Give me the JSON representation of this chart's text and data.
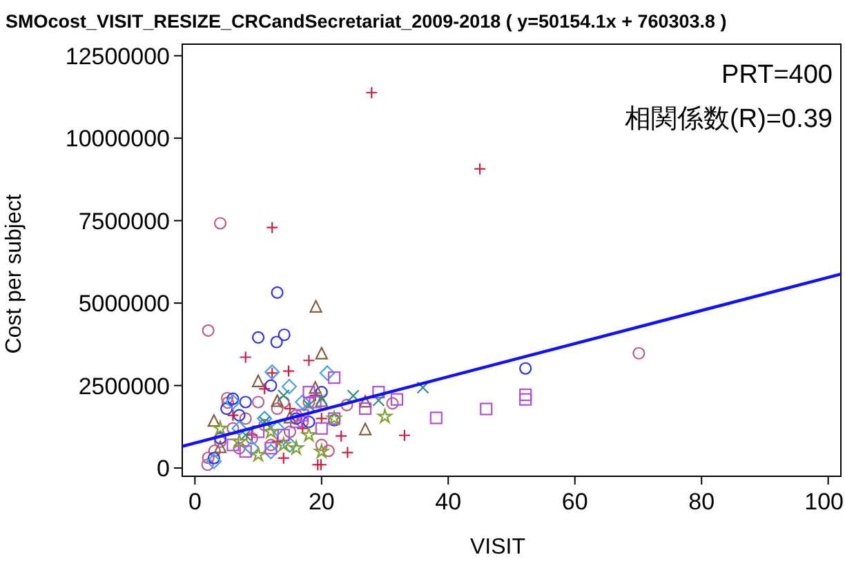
{
  "chart_data": {
    "type": "scatter",
    "title": "SMOcost_VISIT_RESIZE_CRCandSecretariat_2009-2018 ( y=50154.1x + 760303.8 )",
    "xlabel": "VISIT",
    "ylabel": "Cost per subject",
    "annotations": [
      "PRT=400",
      "相関係数(R)=0.39"
    ],
    "xlim": [
      -2,
      102
    ],
    "ylim": [
      -250000,
      12850000
    ],
    "xticks": [
      0,
      20,
      40,
      60,
      80,
      100
    ],
    "yticks": [
      0,
      2500000,
      5000000,
      7500000,
      10000000,
      12500000
    ],
    "grid": false,
    "series": [
      {
        "marker": "circle",
        "color": "#c06080",
        "x": [
          2.0,
          2.1,
          3.1,
          2.1,
          4.0,
          5.1,
          5.2,
          4,
          6,
          7,
          8,
          9,
          10,
          11,
          12,
          13,
          14,
          15,
          16,
          17,
          18,
          20,
          21.1,
          24.0,
          31.2,
          70.1
        ],
        "values": [
          100000,
          310000,
          520000,
          4170000,
          7420000,
          2120000,
          1980000,
          800000,
          1200000,
          600000,
          1500000,
          900000,
          2000000,
          1300000,
          700000,
          1800000,
          2000000,
          1100000,
          1600000,
          1400000,
          2000000,
          700000,
          520000,
          1910000,
          1960000,
          3480000
        ]
      },
      {
        "marker": "circle",
        "color": "#3030ff",
        "x": [
          13.0,
          10.0,
          14.1,
          12.9,
          5,
          6,
          7,
          8,
          4,
          3,
          12,
          16,
          18,
          20,
          22.0,
          52.2
        ],
        "values": [
          5320000,
          3960000,
          4040000,
          3820000,
          1800000,
          2100000,
          1600000,
          2000000,
          900000,
          300000,
          2500000,
          1500000,
          1400000,
          2300000,
          1450000,
          3020000
        ]
      },
      {
        "marker": "cross",
        "color": "#d02040",
        "x": [
          27.9,
          45,
          12.2,
          8.0,
          18.0,
          14.8,
          12.2,
          6,
          9,
          11,
          13,
          15,
          17,
          19,
          20,
          23.1,
          24.1,
          19.4,
          19.9,
          33.1,
          14
        ],
        "values": [
          11380000,
          9070000,
          7290000,
          3360000,
          3260000,
          2940000,
          2880000,
          1600000,
          1000000,
          2400000,
          800000,
          1800000,
          1200000,
          2200000,
          1500000,
          970000,
          470000,
          100000,
          100000,
          990000,
          300000
        ]
      },
      {
        "marker": "triangle",
        "color": "#806040",
        "x": [
          19.1,
          20.0,
          3,
          4,
          10,
          13,
          15,
          19,
          20,
          26.9,
          26.9
        ],
        "values": [
          4860000,
          3440000,
          1400000,
          600000,
          2600000,
          2000000,
          1500000,
          2400000,
          2000000,
          1980000,
          1140000
        ]
      },
      {
        "marker": "diamond",
        "color": "#40a0f0",
        "x": [
          12.2,
          20.9,
          14.9,
          6,
          7,
          9,
          11,
          12,
          13,
          15,
          17,
          3
        ],
        "values": [
          2910000,
          2880000,
          2470000,
          2000000,
          1200000,
          600000,
          1500000,
          500000,
          1200000,
          700000,
          2000000,
          200000
        ]
      },
      {
        "marker": "square",
        "color": "#b050e0",
        "x": [
          22.0,
          52.2,
          52.2,
          46.0,
          38.1,
          29.0,
          31.9,
          26.9,
          18,
          19,
          16,
          14,
          12,
          10,
          8,
          6,
          20,
          22,
          17
        ],
        "values": [
          2740000,
          2220000,
          2080000,
          1790000,
          1520000,
          2300000,
          2080000,
          1800000,
          2300000,
          2000000,
          1400000,
          1000000,
          600000,
          1100000,
          500000,
          700000,
          1200000,
          1500000,
          1600000
        ]
      },
      {
        "marker": "x",
        "color": "#309080",
        "x": [
          36.0,
          25.0,
          29.0,
          20,
          18,
          14,
          11,
          8
        ],
        "values": [
          2440000,
          2190000,
          2050000,
          2100000,
          1900000,
          2200000,
          1400000,
          1000000
        ]
      },
      {
        "marker": "star",
        "color": "#80a030",
        "x": [
          30.0,
          4,
          7,
          10,
          12,
          14,
          16,
          18,
          20,
          22
        ],
        "values": [
          1560000,
          1200000,
          800000,
          400000,
          1100000,
          700000,
          600000,
          1000000,
          500000,
          1500000
        ]
      },
      {
        "type": "line",
        "color": "#1010ff",
        "x": [
          -2,
          102
        ],
        "values": [
          660000,
          5880000
        ]
      }
    ]
  }
}
